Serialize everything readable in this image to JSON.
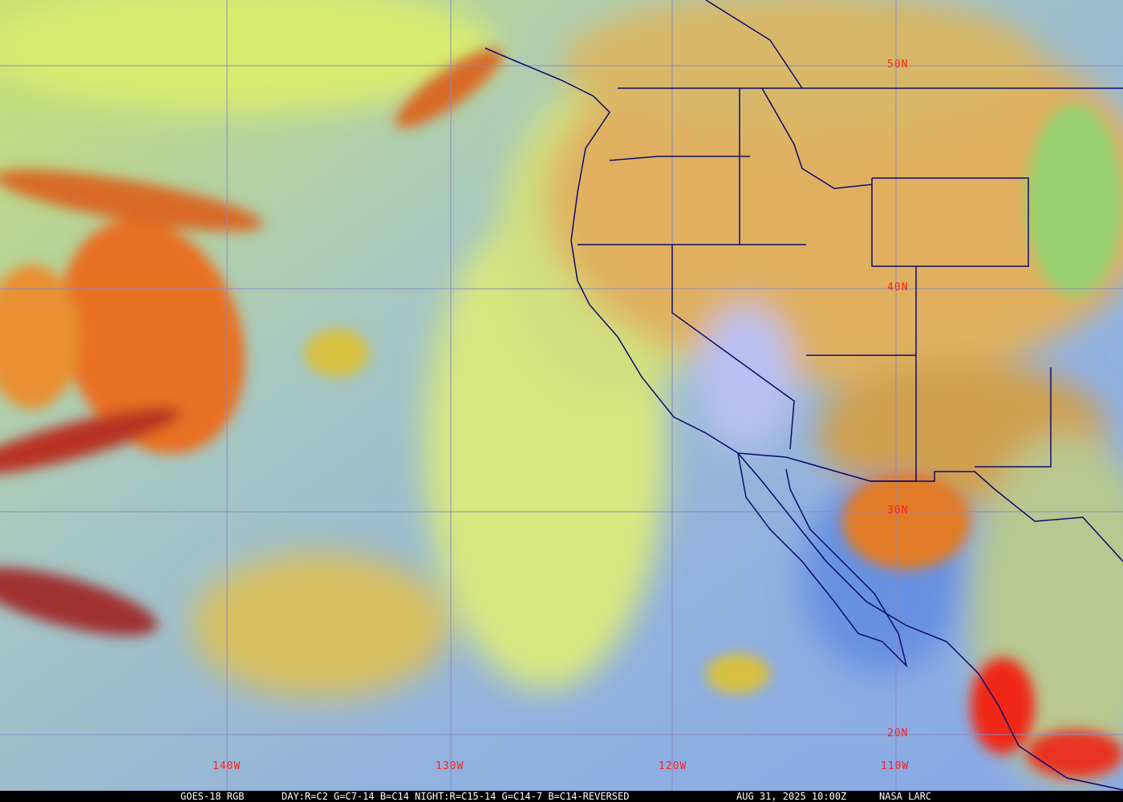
{
  "image": {
    "satellite": "GOES-18 RGB",
    "product": "DAY:R=C2 G=C7-14 B=C14 NIGHT:R=C15-14 G=C14-7 B=C14-REVERSED",
    "timestamp": "AUG 31, 2025 10:00Z",
    "credit": "NASA LARC"
  },
  "latitude_labels": [
    "50N",
    "40N",
    "30N",
    "20N"
  ],
  "longitude_labels": [
    "140W",
    "130W",
    "120W",
    "110W"
  ],
  "colors": {
    "grid": "#8a8ac0",
    "borders": "#0a0a6e",
    "labels": "#ff2020",
    "ocean": "#8fb0e0",
    "clear_land": "#e0b060",
    "high_cloud": "#e86a20"
  }
}
